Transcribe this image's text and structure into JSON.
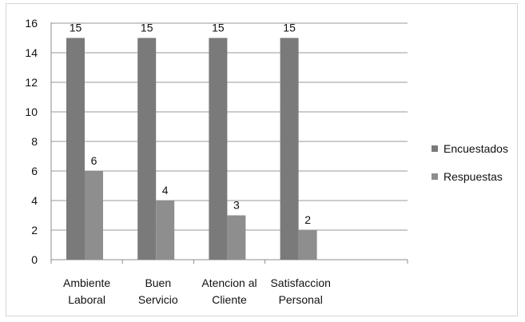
{
  "chart_data": {
    "type": "bar",
    "categories": [
      [
        "Ambiente",
        "Laboral"
      ],
      [
        "Buen",
        "Servicio"
      ],
      [
        "Atencion al",
        "Cliente"
      ],
      [
        "Satisfaccion",
        "Personal"
      ]
    ],
    "ylim": [
      0,
      16
    ],
    "yticks": [
      0,
      2,
      4,
      6,
      8,
      10,
      12,
      14,
      16
    ],
    "grid": true,
    "legend_position": "right",
    "series": [
      {
        "name": "Encuestados",
        "values": [
          15,
          15,
          15,
          15
        ],
        "labels": [
          "15",
          "15",
          "15",
          "15"
        ],
        "color": "#7a7a7a"
      },
      {
        "name": "Respuestas",
        "values": [
          6,
          4,
          3,
          2
        ],
        "labels": [
          "6",
          "4",
          "3",
          "2"
        ],
        "color": "#8e8e8e"
      }
    ],
    "title": "",
    "xlabel": "",
    "ylabel": ""
  }
}
